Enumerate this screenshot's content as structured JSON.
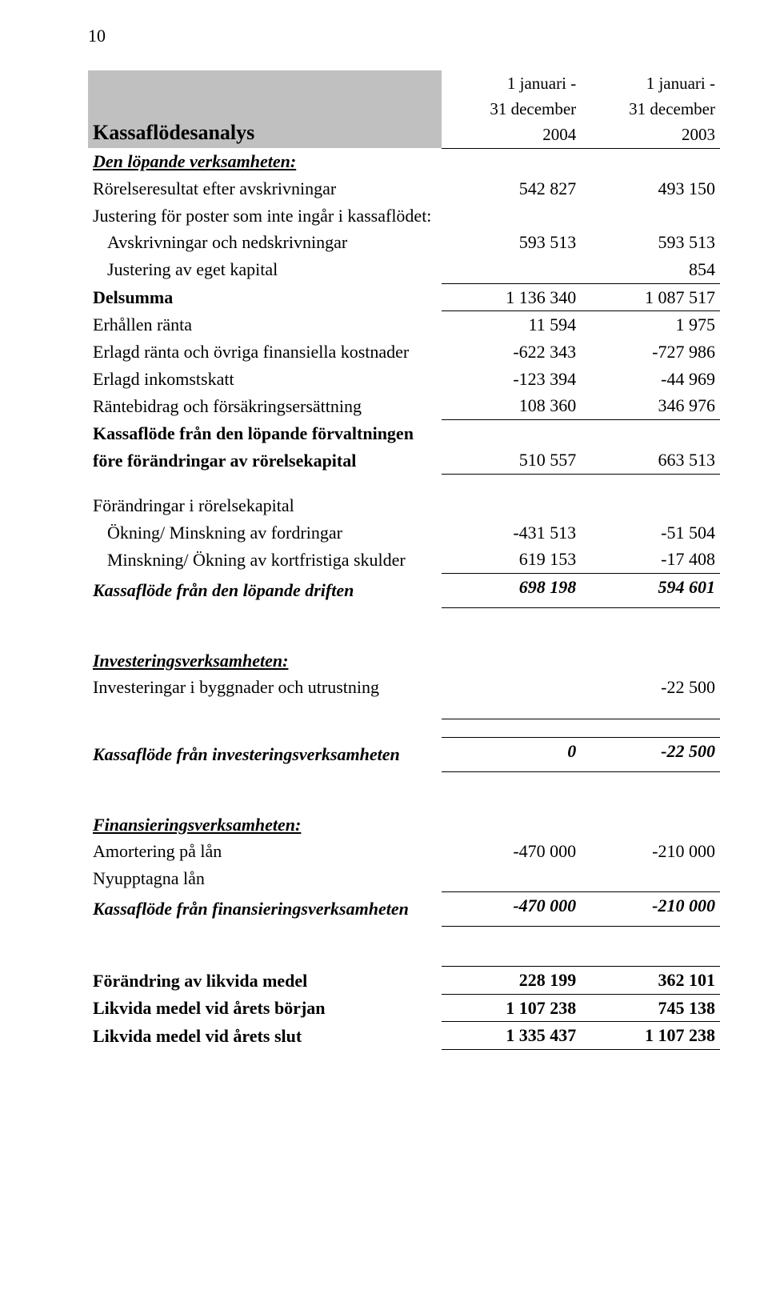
{
  "page_number": "10",
  "report": {
    "title": "Kassaflödesanalys",
    "columns": {
      "col1_line1": "1 januari -",
      "col1_line2": "31 december",
      "col1_line3": "2004",
      "col2_line1": "1 januari -",
      "col2_line2": "31 december",
      "col2_line3": "2003"
    },
    "sections": {
      "operating": {
        "heading": "Den löpande verksamheten:",
        "rows": {
          "r1": {
            "label": "Rörelseresultat efter avskrivningar",
            "c1": "542 827",
            "c2": "493 150"
          },
          "r2": {
            "label": "Justering för poster som inte ingår i kassaflödet:"
          },
          "r3": {
            "label": "Avskrivningar och nedskrivningar",
            "c1": "593 513",
            "c2": "593 513"
          },
          "r4": {
            "label": "Justering av eget kapital",
            "c1": "",
            "c2": "854"
          },
          "r5": {
            "label": "Delsumma",
            "c1": "1 136 340",
            "c2": "1 087 517"
          },
          "r6": {
            "label": "Erhållen ränta",
            "c1": "11 594",
            "c2": "1 975"
          },
          "r7": {
            "label": "Erlagd ränta och övriga finansiella kostnader",
            "c1": "-622 343",
            "c2": "-727 986"
          },
          "r8": {
            "label": "Erlagd inkomstskatt",
            "c1": "-123 394",
            "c2": "-44 969"
          },
          "r9": {
            "label": "Räntebidrag och försäkringsersättning",
            "c1": "108 360",
            "c2": "346 976"
          },
          "r10a": {
            "label": "Kassaflöde från den löpande förvaltningen"
          },
          "r10b": {
            "label": "före förändringar av rörelsekapital",
            "c1": "510 557",
            "c2": "663 513"
          }
        }
      },
      "wc": {
        "heading": "Förändringar i rörelsekapital",
        "rows": {
          "r1": {
            "label": "Ökning/ Minskning av fordringar",
            "c1": "-431 513",
            "c2": "-51 504"
          },
          "r2": {
            "label": "Minskning/ Ökning av kortfristiga skulder",
            "c1": "619 153",
            "c2": "-17 408"
          },
          "r3": {
            "label": "Kassaflöde från den löpande driften",
            "c1": "698 198",
            "c2": "594 601"
          }
        }
      },
      "investing": {
        "heading": "Investeringsverksamheten:",
        "rows": {
          "r1": {
            "label": "Investeringar i byggnader och utrustning",
            "c1": "",
            "c2": "-22 500"
          },
          "r2": {
            "label": "Kassaflöde från investeringsverksamheten",
            "c1": "0",
            "c2": "-22 500"
          }
        }
      },
      "financing": {
        "heading": "Finansieringsverksamheten:",
        "rows": {
          "r1": {
            "label": "Amortering på lån",
            "c1": "-470 000",
            "c2": "-210 000"
          },
          "r2": {
            "label": "Nyupptagna lån"
          },
          "r3": {
            "label": "Kassaflöde från finansieringsverksamheten",
            "c1": "-470 000",
            "c2": "-210 000"
          }
        }
      },
      "summary": {
        "rows": {
          "r1": {
            "label": "Förändring av likvida medel",
            "c1": "228 199",
            "c2": "362 101"
          },
          "r2": {
            "label": "Likvida medel vid årets början",
            "c1": "1 107 238",
            "c2": "745 138"
          },
          "r3": {
            "label": "Likvida medel vid årets slut",
            "c1": "1 335 437",
            "c2": "1 107 238"
          }
        }
      }
    }
  },
  "style": {
    "font_family": "Times New Roman",
    "body_fontsize_pt": 16,
    "title_fontsize_pt": 19,
    "text_color": "#000000",
    "background_color": "#ffffff",
    "title_background": "#c0c0c0",
    "border_color": "#000000",
    "column_alignment": [
      "left",
      "right",
      "right"
    ]
  }
}
